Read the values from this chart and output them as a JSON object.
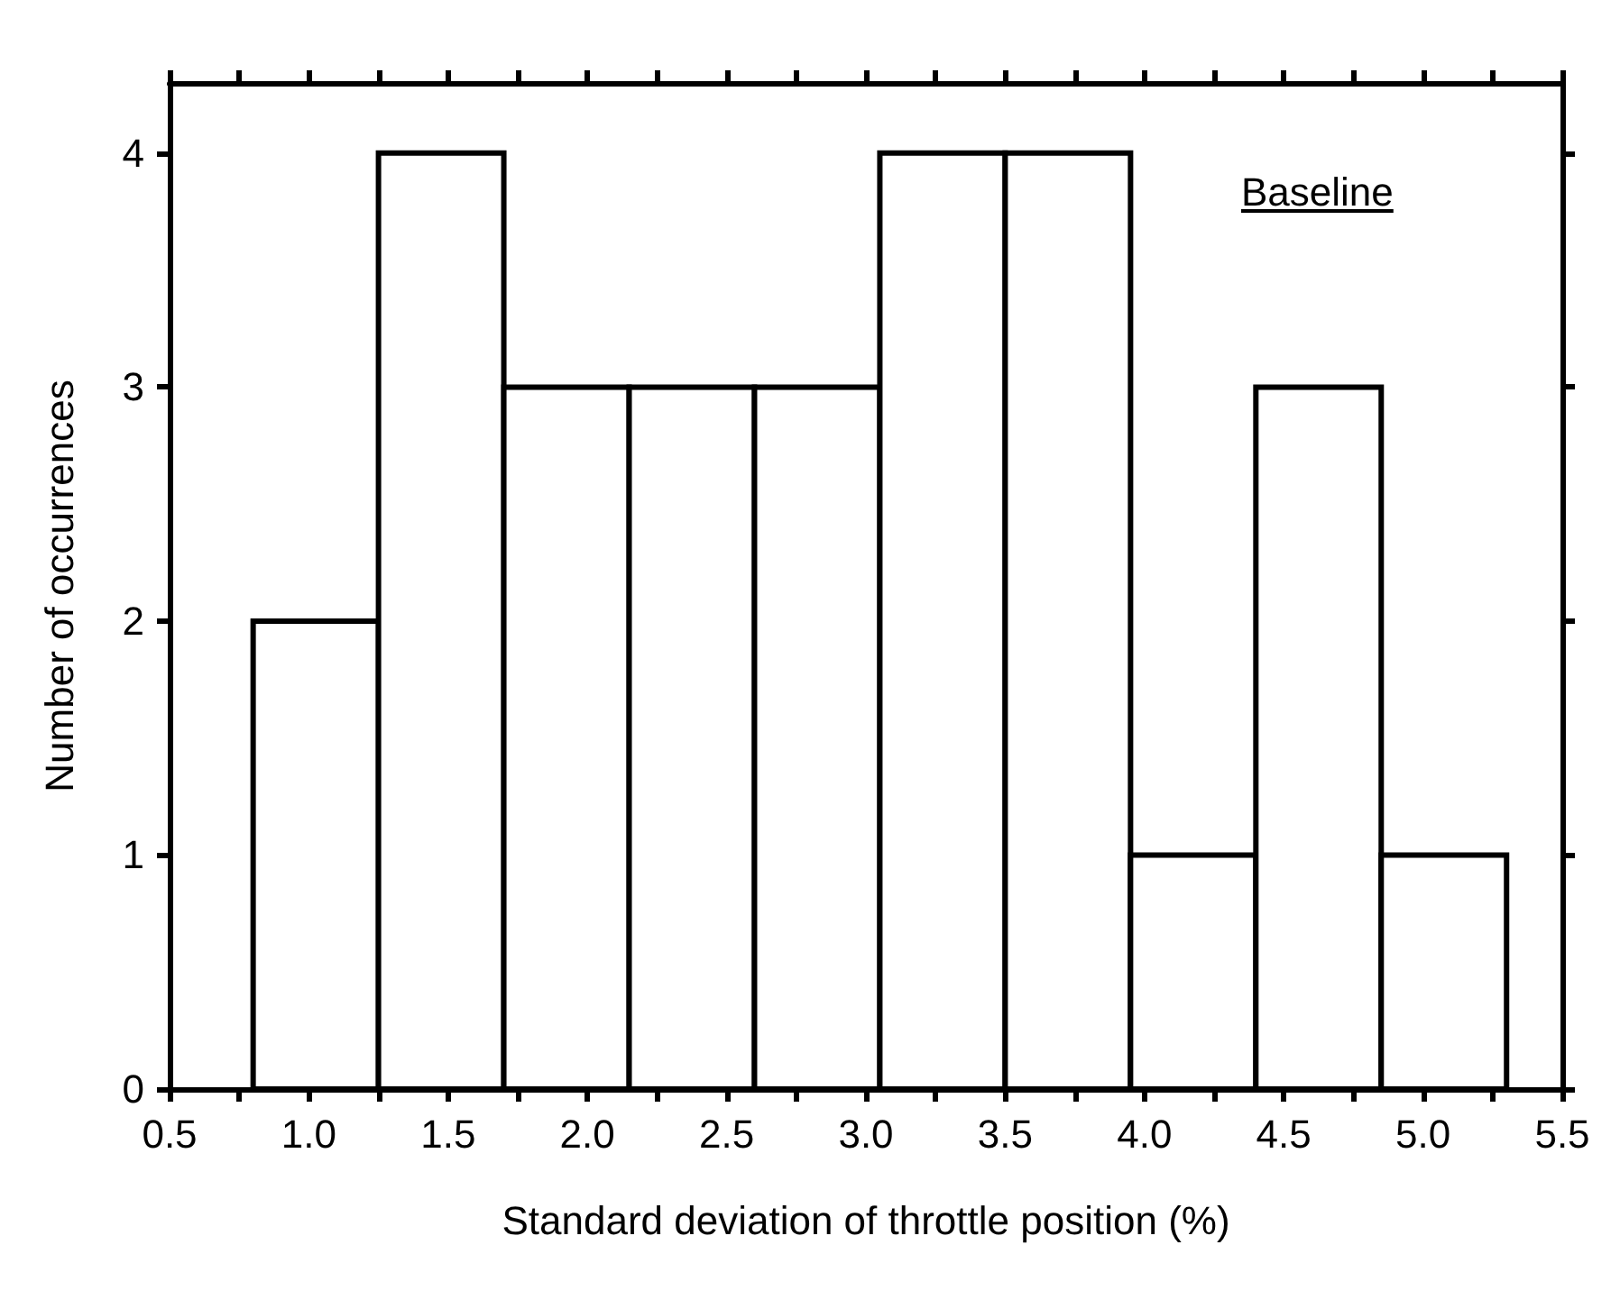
{
  "chart_data": {
    "type": "histogram",
    "xlabel": "Standard deviation of throttle position (%)",
    "ylabel": "Number of occurrences",
    "bins": [
      0.8,
      1.25,
      1.7,
      2.15,
      2.6,
      3.05,
      3.5,
      3.95,
      4.4,
      4.85,
      5.3
    ],
    "values": [
      2,
      4,
      3,
      3,
      3,
      4,
      4,
      1,
      3,
      1
    ],
    "color": "#ffffff",
    "xlim": [
      0.5,
      5.5
    ],
    "xticks": [
      {
        "value": 0.5,
        "label": "0.5"
      },
      {
        "value": 0.75,
        "label": null
      },
      {
        "value": 1,
        "label": "1.0"
      },
      {
        "value": 1.25,
        "label": null
      },
      {
        "value": 1.5,
        "label": "1.5"
      },
      {
        "value": 1.75,
        "label": null
      },
      {
        "value": 2,
        "label": "2.0"
      },
      {
        "value": 2.25,
        "label": null
      },
      {
        "value": 2.5,
        "label": "2.5"
      },
      {
        "value": 2.75,
        "label": null
      },
      {
        "value": 3,
        "label": "3.0"
      },
      {
        "value": 3.25,
        "label": null
      },
      {
        "value": 3.5,
        "label": "3.5"
      },
      {
        "value": 3.75,
        "label": null
      },
      {
        "value": 4,
        "label": "4.0"
      },
      {
        "value": 4.25,
        "label": null
      },
      {
        "value": 4.5,
        "label": "4.5"
      },
      {
        "value": 4.75,
        "label": null
      },
      {
        "value": 5,
        "label": "5.0"
      },
      {
        "value": 5.25,
        "label": null
      },
      {
        "value": 5.5,
        "label": "5.5"
      }
    ],
    "ylim": [
      0,
      4.3
    ],
    "yticks": [
      0,
      1,
      2,
      3,
      4
    ],
    "grid": false,
    "annotations": [
      "Baseline"
    ]
  }
}
